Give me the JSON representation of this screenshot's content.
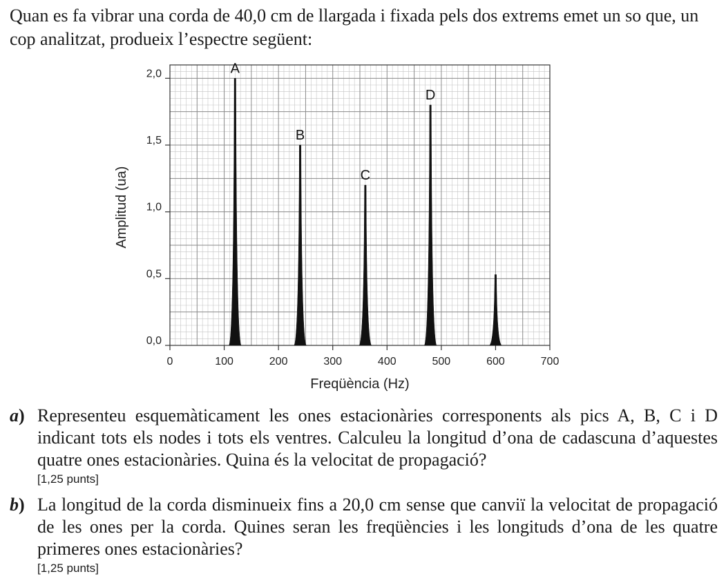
{
  "intro": "Quan es fa vibrar una corda de 40,0 cm de llargada i fixada pels dos extrems emet un so que, un cop analitzat, produeix l’espectre següent:",
  "chart_data": {
    "type": "line",
    "title": "",
    "xlabel": "Freqüència (Hz)",
    "ylabel": "Amplitud (ua)",
    "xlim": [
      0,
      700
    ],
    "ylim": [
      0,
      2.1
    ],
    "x_ticks": [
      "0",
      "100",
      "200",
      "300",
      "400",
      "500",
      "600",
      "700"
    ],
    "y_ticks": [
      "0,0",
      "0,5",
      "1,0",
      "1,5",
      "2,0"
    ],
    "grid": true,
    "peaks": [
      {
        "label": "A",
        "x": 120,
        "y": 2.0
      },
      {
        "label": "B",
        "x": 240,
        "y": 1.5
      },
      {
        "label": "C",
        "x": 360,
        "y": 1.2
      },
      {
        "label": "D",
        "x": 480,
        "y": 1.8
      },
      {
        "label": "",
        "x": 600,
        "y": 0.53
      }
    ]
  },
  "questions": [
    {
      "letter": "a",
      "text": "Representeu esquemàticament les ones estacionàries corresponents als pics A, B, C i D indicant tots els nodes i tots els ventres. Calculeu la longitud d’ona de cadascuna d’aquestes quatre ones estacionàries. Quina és la velocitat de propagació?",
      "points": "[1,25 punts]"
    },
    {
      "letter": "b",
      "text": "La longitud de la corda disminueix fins a 20,0 cm sense que canviï la velocitat de propagació de les ones per la corda. Quines seran les freqüències i les longituds d’ona de les quatre primeres ones estacionàries?",
      "points": "[1,25 punts]"
    }
  ]
}
